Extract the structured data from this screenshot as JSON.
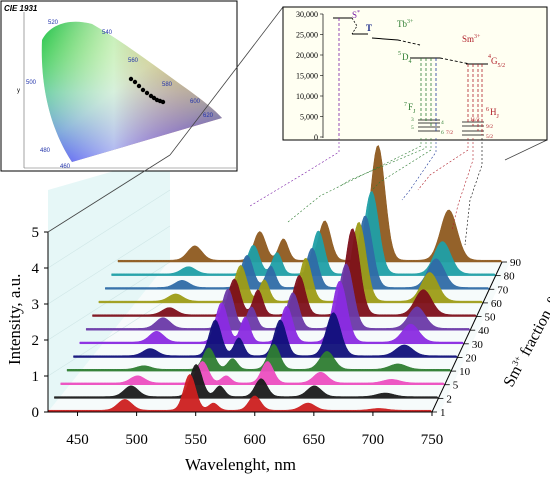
{
  "cie_inset": {
    "title": "CIE 1931",
    "ylabel": "y",
    "wavelength_marks": [
      "520",
      "540",
      "560",
      "580",
      "600",
      "620",
      "500",
      "480",
      "460"
    ]
  },
  "energy_inset": {
    "y_ticks": [
      "0",
      "5,000",
      "10,000",
      "15,000",
      "20,000",
      "25,000",
      "30,000"
    ],
    "labels": {
      "s_state": "S",
      "s_sup": "*",
      "t_state": "T",
      "tb_ion": "Tb",
      "tb_sup": "3+",
      "sm_ion": "Sm",
      "sm_sup": "3+",
      "d4_pre": "5",
      "d4": "D",
      "d4_sub": "4",
      "g52_pre": "4",
      "g52": "G",
      "g52_sub": "5/2",
      "f7_pre": "7",
      "f7": "F",
      "f7_sub": "J",
      "h6_pre": "6",
      "h6": "H",
      "h6_sub": "J",
      "tb_levels": [
        "3",
        "4",
        "5",
        "6"
      ],
      "sm_levels": [
        "11/2",
        "9/2",
        "7/2",
        "5/2"
      ]
    }
  },
  "chart_data": {
    "type": "area",
    "title": "",
    "xlabel": "Wavelenght, nm",
    "ylabel": "Intensity, a.u.",
    "zlabel_main": "Sm",
    "zlabel_sup": "3+",
    "zlabel_rest": " fraction, %",
    "xlim": [
      425,
      750
    ],
    "ylim": [
      0,
      5
    ],
    "x_ticks": [
      450,
      500,
      550,
      600,
      650,
      700,
      750
    ],
    "y_ticks": [
      0,
      1,
      2,
      3,
      4,
      5
    ],
    "z_ticks": [
      90,
      80,
      70,
      60,
      50,
      40,
      30,
      20,
      10,
      5,
      2,
      1
    ],
    "series": [
      {
        "name": "90",
        "color": "#8e5a1f",
        "peaks": [
          [
            490,
            0.4
          ],
          [
            545,
            0.8
          ],
          [
            565,
            0.6
          ],
          [
            600,
            1.1
          ],
          [
            645,
            3.2
          ],
          [
            705,
            1.4
          ]
        ]
      },
      {
        "name": "80",
        "color": "#1f9fa6",
        "peaks": [
          [
            490,
            0.2
          ],
          [
            545,
            0.8
          ],
          [
            565,
            0.6
          ],
          [
            600,
            1.2
          ],
          [
            645,
            2.3
          ],
          [
            705,
            0.9
          ]
        ]
      },
      {
        "name": "70",
        "color": "#2f6ca6",
        "peaks": [
          [
            490,
            0.2
          ],
          [
            545,
            0.9
          ],
          [
            565,
            0.6
          ],
          [
            600,
            1.1
          ],
          [
            645,
            2.0
          ],
          [
            705,
            0.8
          ]
        ]
      },
      {
        "name": "60",
        "color": "#9d9c16",
        "peaks": [
          [
            490,
            0.2
          ],
          [
            545,
            1.0
          ],
          [
            565,
            0.6
          ],
          [
            600,
            1.2
          ],
          [
            645,
            2.2
          ],
          [
            705,
            0.8
          ]
        ]
      },
      {
        "name": "50",
        "color": "#7d0f1a",
        "peaks": [
          [
            490,
            0.2
          ],
          [
            545,
            1.0
          ],
          [
            565,
            0.7
          ],
          [
            600,
            1.1
          ],
          [
            645,
            2.4
          ],
          [
            705,
            0.7
          ]
        ]
      },
      {
        "name": "40",
        "color": "#6a39a8",
        "peaks": [
          [
            490,
            0.3
          ],
          [
            545,
            1.1
          ],
          [
            565,
            0.6
          ],
          [
            600,
            1.0
          ],
          [
            645,
            1.8
          ],
          [
            705,
            0.6
          ]
        ]
      },
      {
        "name": "30",
        "color": "#8a2be2",
        "peaks": [
          [
            490,
            0.3
          ],
          [
            545,
            1.1
          ],
          [
            565,
            0.7
          ],
          [
            600,
            1.0
          ],
          [
            645,
            1.7
          ],
          [
            705,
            0.5
          ]
        ]
      },
      {
        "name": "20",
        "color": "#10107a",
        "peaks": [
          [
            490,
            0.2
          ],
          [
            545,
            1.0
          ],
          [
            565,
            0.5
          ],
          [
            600,
            1.0
          ],
          [
            645,
            1.2
          ],
          [
            705,
            0.3
          ]
        ]
      },
      {
        "name": "10",
        "color": "#2e7d32",
        "peaks": [
          [
            490,
            0.1
          ],
          [
            545,
            0.6
          ],
          [
            565,
            0.3
          ],
          [
            600,
            0.7
          ],
          [
            645,
            0.5
          ],
          [
            705,
            0.15
          ]
        ]
      },
      {
        "name": "5",
        "color": "#ec4ec0",
        "peaks": [
          [
            490,
            0.2
          ],
          [
            545,
            0.6
          ],
          [
            565,
            0.2
          ],
          [
            600,
            0.6
          ],
          [
            645,
            0.3
          ],
          [
            705,
            0.1
          ]
        ]
      },
      {
        "name": "2",
        "color": "#1a1a1a",
        "peaks": [
          [
            490,
            0.3
          ],
          [
            545,
            0.9
          ],
          [
            565,
            0.3
          ],
          [
            600,
            0.5
          ],
          [
            645,
            0.3
          ],
          [
            705,
            0.1
          ]
        ]
      },
      {
        "name": "1",
        "color": "#cc1f1f",
        "peaks": [
          [
            490,
            0.3
          ],
          [
            545,
            1.0
          ],
          [
            565,
            0.2
          ],
          [
            600,
            0.4
          ],
          [
            645,
            0.2
          ],
          [
            705,
            0.05
          ]
        ]
      }
    ]
  }
}
